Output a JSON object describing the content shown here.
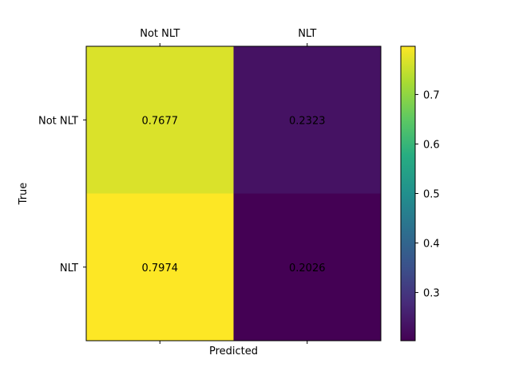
{
  "chart_data": {
    "type": "heatmap",
    "title": "",
    "xlabel": "Predicted",
    "ylabel": "True",
    "x_categories": [
      "Not NLT",
      "NLT"
    ],
    "y_categories": [
      "Not NLT",
      "NLT"
    ],
    "values": [
      [
        0.7677,
        0.2323
      ],
      [
        0.7974,
        0.2026
      ]
    ],
    "value_labels": [
      [
        "0.7677",
        "0.2323"
      ],
      [
        "0.7974",
        "0.2026"
      ]
    ],
    "colormap": "viridis",
    "colorbar": {
      "range": [
        0.2026,
        0.7974
      ],
      "ticks": [
        0.3,
        0.4,
        0.5,
        0.6,
        0.7
      ],
      "tick_labels": [
        "0.3",
        "0.4",
        "0.5",
        "0.6",
        "0.7"
      ]
    },
    "x_tick_position": "top",
    "grid": false
  }
}
